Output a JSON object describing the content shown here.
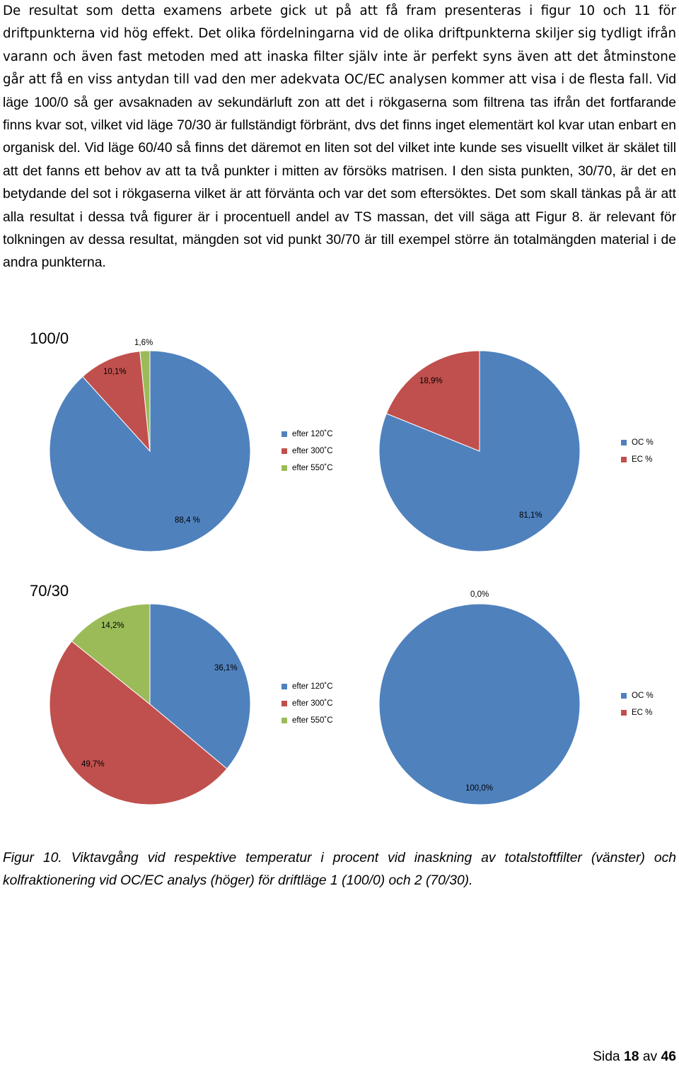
{
  "body_text": {
    "part1": "De resultat som detta examens arbete gick ut på att få fram presenteras i figur 10 och 11 för driftpunkterna vid hög effekt. Det olika fördelningarna vid de olika driftpunkterna skiljer sig tydligt ifrån varann och även fast metoden med att inaska filter själv inte är perfekt syns även att det åtminstone går att få en viss antydan till vad den mer adekvata OC/EC analysen kommer att visa i de flesta fall.",
    "part2": " Vid läge 100/0 så ger avsaknaden av sekundärluft zon att det i rökgaserna som filtrena tas ifrån det fortfarande finns kvar sot, vilket vid läge 70/30 är fullständigt förbränt, dvs det finns inget elementärt kol kvar utan enbart en organisk del. Vid läge 60/40 så finns det däremot en liten sot del vilket inte kunde ses visuellt vilket är skälet till att det fanns ett behov av att ta två punkter i mitten av försöks matrisen. I den sista punkten, 30/70, är det en betydande del sot i rökgaserna vilket är att förvänta och var det som eftersöktes. Det som skall tänkas på är att alla resultat i dessa två figurer är i procentuell andel av TS massan, det vill säga att Figur 8. är relevant för tolkningen av dessa resultat, mängden sot vid punkt 30/70 är till exempel större än totalmängden material i de andra punkterna."
  },
  "colors": {
    "blue": "#4f81bd",
    "red": "#c0504d",
    "green": "#9bbb59"
  },
  "chart_data": [
    {
      "type": "pie",
      "group": "100/0",
      "side": "left",
      "series": [
        {
          "name": "efter 120˚C",
          "value": 88.4,
          "label": "88,4 %",
          "color": "#4f81bd"
        },
        {
          "name": "efter 300˚C",
          "value": 10.1,
          "label": "10,1%",
          "color": "#c0504d"
        },
        {
          "name": "efter 550˚C",
          "value": 1.6,
          "label": "1,6%",
          "color": "#9bbb59"
        }
      ]
    },
    {
      "type": "pie",
      "group": "100/0",
      "side": "right",
      "series": [
        {
          "name": "OC %",
          "value": 81.1,
          "label": "81,1%",
          "color": "#4f81bd"
        },
        {
          "name": "EC %",
          "value": 18.9,
          "label": "18,9%",
          "color": "#c0504d"
        }
      ]
    },
    {
      "type": "pie",
      "group": "70/30",
      "side": "left",
      "series": [
        {
          "name": "efter 120˚C",
          "value": 36.1,
          "label": "36,1%",
          "color": "#4f81bd"
        },
        {
          "name": "efter 300˚C",
          "value": 49.7,
          "label": "49,7%",
          "color": "#c0504d"
        },
        {
          "name": "efter 550˚C",
          "value": 14.2,
          "label": "14,2%",
          "color": "#9bbb59"
        }
      ]
    },
    {
      "type": "pie",
      "group": "70/30",
      "side": "right",
      "series": [
        {
          "name": "OC %",
          "value": 100.0,
          "label": "100,0%",
          "color": "#4f81bd"
        },
        {
          "name": "EC %",
          "value": 0.0,
          "label": "0,0%",
          "color": "#c0504d"
        }
      ]
    }
  ],
  "figures": {
    "row1_title": "100/0",
    "row2_title": "70/30",
    "legend_left": [
      "efter 120˚C",
      "efter 300˚C",
      "efter 550˚C"
    ],
    "legend_right": [
      "OC %",
      "EC %"
    ]
  },
  "caption": "Figur 10.  Viktavgång vid respektive temperatur i procent vid inaskning av totalstoftfilter (vänster) och kolfraktionering vid OC/EC analys (höger) för driftläge 1 (100/0) och 2 (70/30).",
  "footer": {
    "prefix": "Sida ",
    "page": "18",
    "middle": " av ",
    "total": "46"
  }
}
